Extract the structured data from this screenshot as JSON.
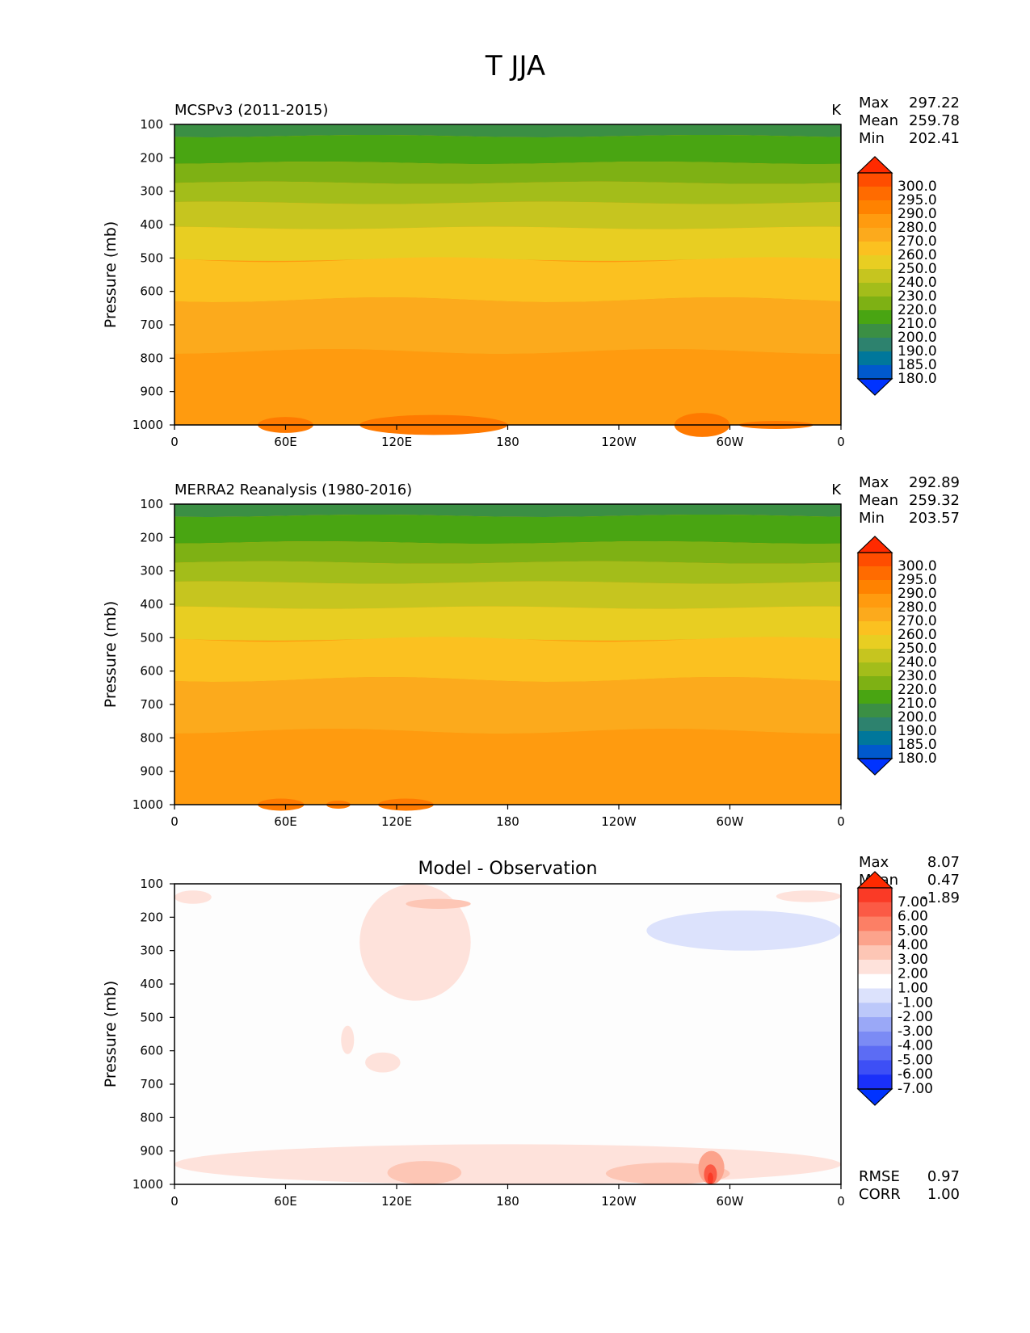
{
  "figure": {
    "title": "T JJA"
  },
  "chart_data": [
    {
      "type": "heatmap",
      "title": "MCSPv3 (2011-2015)",
      "units": "K",
      "ylabel": "Pressure (mb)",
      "xlabel": "",
      "x_ticks": [
        "0",
        "60E",
        "120E",
        "180",
        "120W",
        "60W",
        "0"
      ],
      "y_ticks": [
        "100",
        "200",
        "300",
        "400",
        "500",
        "600",
        "700",
        "800",
        "900",
        "1000"
      ],
      "ylim": [
        1000,
        100
      ],
      "xlim": [
        0,
        360
      ],
      "stats": [
        {
          "label": "Max",
          "value": "297.22"
        },
        {
          "label": "Mean",
          "value": "259.78"
        },
        {
          "label": "Min",
          "value": "202.41"
        }
      ],
      "colorbar": {
        "labels": [
          "300.0",
          "295.0",
          "290.0",
          "280.0",
          "270.0",
          "260.0",
          "250.0",
          "240.0",
          "230.0",
          "220.0",
          "210.0",
          "200.0",
          "190.0",
          "185.0",
          "180.0"
        ],
        "colors": [
          "#ff2a00",
          "#ff4d00",
          "#ff6b00",
          "#ff8200",
          "#ff9b0f",
          "#fcaa1c",
          "#fbc120",
          "#e8ce22",
          "#c6c51f",
          "#a3bd1a",
          "#7eb114",
          "#49a512",
          "#3b8f44",
          "#2d826e",
          "#00779b",
          "#0059cd",
          "#0033ff"
        ]
      },
      "bands_pressure_mb": [
        {
          "level": "210-220",
          "top": 100,
          "bottom": 135
        },
        {
          "level": "220-230",
          "top": 135,
          "bottom": 215
        },
        {
          "level": "230-240",
          "top": 215,
          "bottom": 275
        },
        {
          "level": "240-250",
          "top": 275,
          "bottom": 335
        },
        {
          "level": "250-260",
          "top": 335,
          "bottom": 410
        },
        {
          "level": "260-270",
          "top": 410,
          "bottom": 505
        },
        {
          "level": "270-280",
          "top": 505,
          "bottom": 625
        },
        {
          "level": "280-290",
          "top": 625,
          "bottom": 780
        },
        {
          "level": "290-295",
          "top": 780,
          "bottom": 1000
        }
      ]
    },
    {
      "type": "heatmap",
      "title": "MERRA2 Reanalysis (1980-2016)",
      "units": "K",
      "ylabel": "Pressure (mb)",
      "xlabel": "",
      "x_ticks": [
        "0",
        "60E",
        "120E",
        "180",
        "120W",
        "60W",
        "0"
      ],
      "y_ticks": [
        "100",
        "200",
        "300",
        "400",
        "500",
        "600",
        "700",
        "800",
        "900",
        "1000"
      ],
      "ylim": [
        1000,
        100
      ],
      "xlim": [
        0,
        360
      ],
      "stats": [
        {
          "label": "Max",
          "value": "292.89"
        },
        {
          "label": "Mean",
          "value": "259.32"
        },
        {
          "label": "Min",
          "value": "203.57"
        }
      ],
      "colorbar": {
        "labels": [
          "300.0",
          "295.0",
          "290.0",
          "280.0",
          "270.0",
          "260.0",
          "250.0",
          "240.0",
          "230.0",
          "220.0",
          "210.0",
          "200.0",
          "190.0",
          "185.0",
          "180.0"
        ],
        "colors": [
          "#ff2a00",
          "#ff4d00",
          "#ff6b00",
          "#ff8200",
          "#ff9b0f",
          "#fcaa1c",
          "#fbc120",
          "#e8ce22",
          "#c6c51f",
          "#a3bd1a",
          "#7eb114",
          "#49a512",
          "#3b8f44",
          "#2d826e",
          "#00779b",
          "#0059cd",
          "#0033ff"
        ]
      },
      "bands_pressure_mb": [
        {
          "level": "210-220",
          "top": 100,
          "bottom": 135
        },
        {
          "level": "220-230",
          "top": 135,
          "bottom": 215
        },
        {
          "level": "230-240",
          "top": 215,
          "bottom": 275
        },
        {
          "level": "240-250",
          "top": 275,
          "bottom": 335
        },
        {
          "level": "250-260",
          "top": 335,
          "bottom": 410
        },
        {
          "level": "260-270",
          "top": 410,
          "bottom": 505
        },
        {
          "level": "270-280",
          "top": 505,
          "bottom": 625
        },
        {
          "level": "280-290",
          "top": 625,
          "bottom": 780
        },
        {
          "level": "290-295",
          "top": 780,
          "bottom": 1000
        }
      ]
    },
    {
      "type": "heatmap",
      "title": "Model - Observation",
      "units": "",
      "ylabel": "Pressure (mb)",
      "xlabel": "",
      "x_ticks": [
        "0",
        "60E",
        "120E",
        "180",
        "120W",
        "60W",
        "0"
      ],
      "y_ticks": [
        "100",
        "200",
        "300",
        "400",
        "500",
        "600",
        "700",
        "800",
        "900",
        "1000"
      ],
      "ylim": [
        1000,
        100
      ],
      "xlim": [
        0,
        360
      ],
      "stats": [
        {
          "label": "Max",
          "value": "8.07"
        },
        {
          "label": "Mean",
          "value": "0.47"
        },
        {
          "label": "Min",
          "value": "-1.89"
        }
      ],
      "extra_stats": [
        {
          "label": "RMSE",
          "value": "0.97"
        },
        {
          "label": "CORR",
          "value": "1.00"
        }
      ],
      "colorbar": {
        "labels": [
          "7.00",
          "6.00",
          "5.00",
          "4.00",
          "3.00",
          "2.00",
          "1.00",
          "-1.00",
          "-2.00",
          "-3.00",
          "-4.00",
          "-5.00",
          "-6.00",
          "-7.00"
        ],
        "colors": [
          "#ff2a00",
          "#fa3a26",
          "#fb5a45",
          "#fc7f65",
          "#fca38c",
          "#fdc6b5",
          "#fee2db",
          "#ffffff",
          "#dce2fc",
          "#bcc8fa",
          "#9aa8f7",
          "#7b8bf5",
          "#5c6cf4",
          "#3d4ff6",
          "#1a30fa",
          "#0033ff"
        ]
      },
      "anomalies": [
        {
          "lon": [
            100,
            160
          ],
          "p": [
            100,
            450
          ],
          "level": "1-2"
        },
        {
          "lon": [
            125,
            160
          ],
          "p": [
            145,
            175
          ],
          "level": "2-3"
        },
        {
          "lon": [
            255,
            360
          ],
          "p": [
            180,
            300
          ],
          "level": "-1--2"
        },
        {
          "lon": [
            0,
            20
          ],
          "p": [
            120,
            160
          ],
          "level": "1-2"
        },
        {
          "lon": [
            325,
            360
          ],
          "p": [
            120,
            155
          ],
          "level": "1-2"
        },
        {
          "lon": [
            90,
            97
          ],
          "p": [
            525,
            610
          ],
          "level": "1-2"
        },
        {
          "lon": [
            103,
            122
          ],
          "p": [
            605,
            665
          ],
          "level": "1-2"
        },
        {
          "lon": [
            0,
            360
          ],
          "p": [
            880,
            1000
          ],
          "level": "1-2"
        },
        {
          "lon": [
            115,
            155
          ],
          "p": [
            930,
            1000
          ],
          "level": "2-3"
        },
        {
          "lon": [
            233,
            300
          ],
          "p": [
            935,
            1000
          ],
          "level": "2-3"
        },
        {
          "lon": [
            283,
            297
          ],
          "p": [
            900,
            1000
          ],
          "level": "3-4"
        },
        {
          "lon": [
            286,
            293
          ],
          "p": [
            940,
            1000
          ],
          "level": "5-6"
        },
        {
          "lon": [
            288,
            291
          ],
          "p": [
            965,
            1000
          ],
          "level": "7-8"
        }
      ]
    }
  ]
}
